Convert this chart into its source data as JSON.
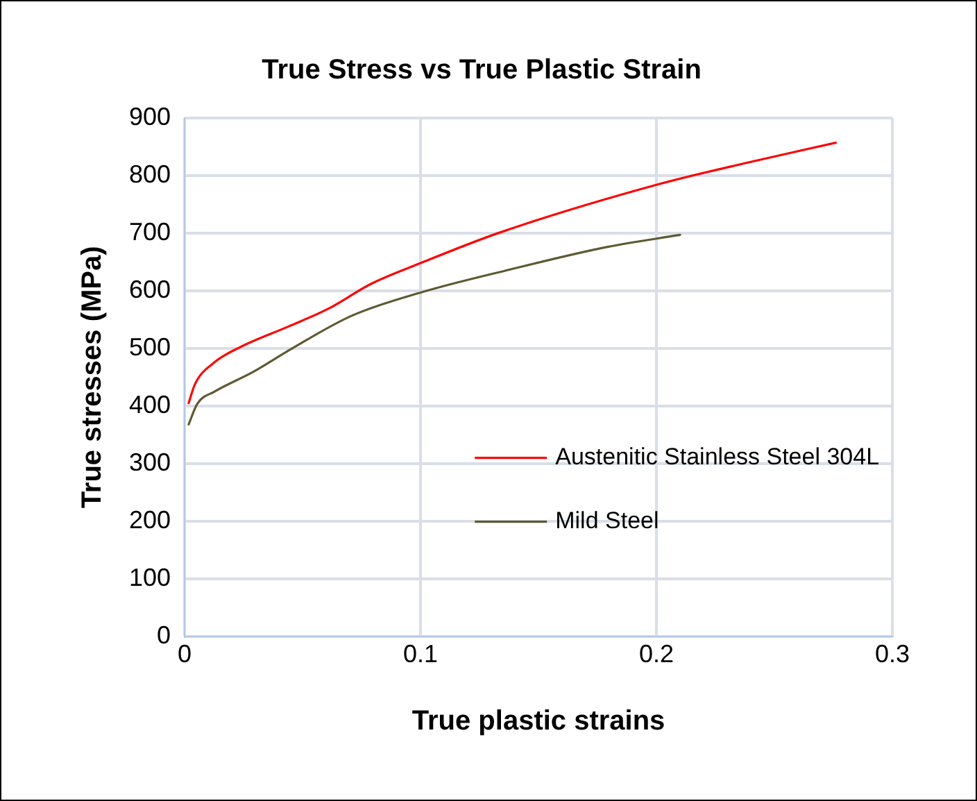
{
  "chart_data": {
    "type": "line",
    "title": "True Stress vs True Plastic Strain",
    "xlabel": "True plastic strains",
    "ylabel": "True stresses (MPa)",
    "xlim": [
      0,
      0.3
    ],
    "xticks": [
      0,
      0.1,
      0.2,
      0.3
    ],
    "ylim": [
      0,
      900
    ],
    "yticks": [
      0,
      100,
      200,
      300,
      400,
      500,
      600,
      700,
      800,
      900
    ],
    "grid": true,
    "legend": "right",
    "marker": "none",
    "line_style": "solid",
    "series": [
      {
        "name": "Austenitic Stainless Steel 304L",
        "color": "#ff0000",
        "x": [
          0.0017,
          0.0044,
          0.0127,
          0.023,
          0.044,
          0.061,
          0.079,
          0.1,
          0.1335,
          0.2,
          0.238,
          0.276
        ],
        "values": [
          405,
          438,
          476,
          501,
          538,
          569,
          612,
          648,
          701,
          784,
          822,
          857
        ]
      },
      {
        "name": "Mild Steel",
        "color": "#5e5a32",
        "x": [
          0.0017,
          0.0054,
          0.0127,
          0.029,
          0.046,
          0.071,
          0.1,
          0.138,
          0.179,
          0.21
        ],
        "values": [
          368,
          404,
          425,
          459,
          501,
          557,
          597,
          637,
          676,
          697
        ]
      }
    ]
  }
}
